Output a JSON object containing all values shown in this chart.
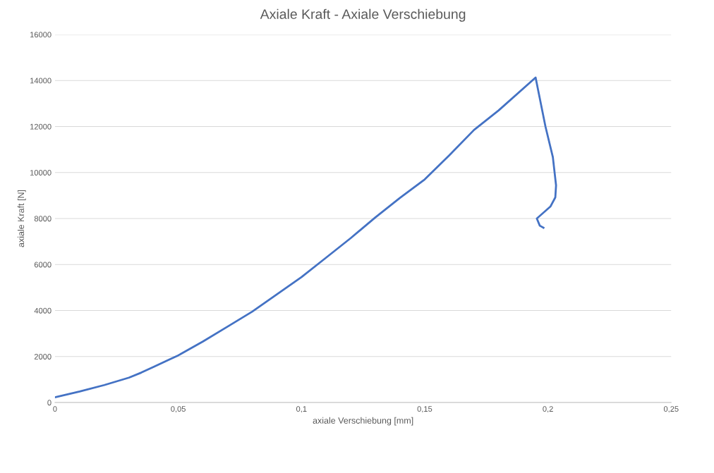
{
  "chart_data": {
    "type": "line",
    "title": "Axiale Kraft - Axiale Verschiebung",
    "xlabel": "axiale Verschiebung [mm]",
    "ylabel": "axiale Kraft [N]",
    "series": [
      {
        "color": "#4472c4",
        "x": [
          0,
          0.01,
          0.02,
          0.03,
          0.035,
          0.04,
          0.05,
          0.06,
          0.07,
          0.08,
          0.09,
          0.1,
          0.11,
          0.12,
          0.13,
          0.14,
          0.15,
          0.16,
          0.17,
          0.18,
          0.195,
          0.199,
          0.202,
          0.2033,
          0.203,
          0.201,
          0.1955,
          0.1967,
          0.1982
        ],
        "values": [
          230,
          480,
          760,
          1080,
          1300,
          1550,
          2050,
          2650,
          3300,
          3950,
          4700,
          5450,
          6300,
          7150,
          8050,
          8900,
          9700,
          10750,
          11850,
          12700,
          14130,
          12000,
          10670,
          9440,
          8920,
          8520,
          8000,
          7690,
          7600
        ]
      }
    ],
    "xlim": [
      0,
      0.25
    ],
    "xticks": [
      0,
      {
        "value": 0.05,
        "label": "0,05"
      },
      {
        "value": 0.1,
        "label": "0,1"
      },
      {
        "value": 0.15,
        "label": "0,15"
      },
      {
        "value": 0.2,
        "label": "0,2"
      },
      {
        "value": 0.25,
        "label": "0,25"
      }
    ],
    "ylim": [
      0,
      16000
    ],
    "yticks": [
      0,
      2000,
      4000,
      6000,
      8000,
      10000,
      12000,
      14000,
      16000
    ],
    "grid": "y",
    "marker": "none",
    "line_style": "solid"
  }
}
